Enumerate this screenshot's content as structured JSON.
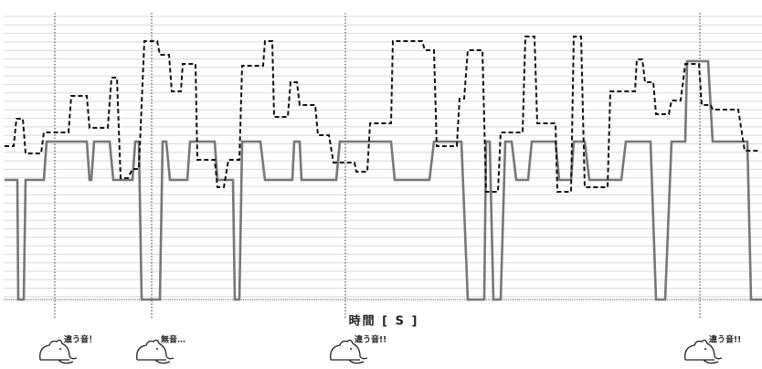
{
  "chart_data": {
    "type": "line",
    "xlabel": "時間 [ S ]",
    "xlim": [
      0,
      830
    ],
    "ylim": [
      0,
      310
    ],
    "grid": true,
    "series": [
      {
        "color": "#777777",
        "dash": "solid",
        "x": [
          1,
          15,
          16,
          22,
          24,
          44,
          47,
          91,
          94,
          96,
          99,
          116,
          120,
          141,
          144,
          148,
          151,
          171,
          174,
          178,
          182,
          201,
          204,
          231,
          234,
          251,
          253,
          258,
          261,
          281,
          286,
          316,
          318,
          324,
          326,
          364,
          368,
          424,
          428,
          466,
          471,
          501,
          508,
          526,
          528,
          532,
          536,
          544,
          549,
          556,
          561,
          574,
          578,
          604,
          608,
          621,
          624,
          636,
          641,
          676,
          681,
          708,
          714,
          724,
          731,
          746,
          748,
          771,
          776,
          814,
          818,
          830
        ],
        "values": [
          131,
          131,
          0,
          0,
          131,
          131,
          173,
          173,
          131,
          131,
          173,
          173,
          131,
          131,
          173,
          173,
          0,
          0,
          173,
          173,
          131,
          131,
          173,
          173,
          131,
          131,
          0,
          0,
          173,
          173,
          131,
          131,
          173,
          173,
          131,
          131,
          173,
          173,
          131,
          131,
          173,
          173,
          0,
          0,
          173,
          173,
          0,
          0,
          173,
          173,
          131,
          131,
          173,
          173,
          131,
          131,
          173,
          173,
          131,
          131,
          173,
          173,
          0,
          0,
          173,
          173,
          261,
          261,
          173,
          173,
          0,
          0
        ]
      },
      {
        "color": "#111111",
        "dash": "dashed",
        "x": [
          1,
          11,
          14,
          21,
          24,
          41,
          44,
          71,
          74,
          91,
          94,
          114,
          118,
          124,
          128,
          136,
          141,
          148,
          154,
          168,
          171,
          181,
          184,
          194,
          196,
          210,
          212,
          231,
          234,
          241,
          246,
          258,
          261,
          284,
          286,
          294,
          296,
          311,
          314,
          321,
          324,
          341,
          344,
          356,
          361,
          384,
          386,
          398,
          401,
          424,
          426,
          458,
          461,
          471,
          474,
          496,
          499,
          504,
          508,
          524,
          528,
          541,
          544,
          568,
          571,
          581,
          584,
          604,
          606,
          621,
          624,
          632,
          636,
          661,
          664,
          691,
          693,
          699,
          702,
          711,
          714,
          728,
          731,
          741,
          746,
          761,
          764,
          774,
          776,
          804,
          811,
          826
        ],
        "values": [
          168,
          168,
          198,
          198,
          160,
          160,
          183,
          183,
          223,
          223,
          188,
          188,
          243,
          243,
          133,
          133,
          143,
          143,
          283,
          283,
          268,
          268,
          228,
          228,
          258,
          258,
          153,
          153,
          123,
          123,
          153,
          153,
          256,
          256,
          283,
          283,
          200,
          200,
          238,
          238,
          213,
          213,
          180,
          180,
          150,
          150,
          140,
          140,
          193,
          193,
          283,
          283,
          273,
          273,
          168,
          168,
          220,
          220,
          273,
          273,
          118,
          118,
          183,
          183,
          288,
          288,
          193,
          193,
          118,
          118,
          288,
          288,
          123,
          123,
          228,
          228,
          263,
          263,
          238,
          238,
          203,
          203,
          218,
          218,
          258,
          258,
          213,
          213,
          208,
          208,
          163,
          163
        ]
      }
    ],
    "markers": [
      {
        "x": 56,
        "label": "違う音！"
      },
      {
        "x": 162,
        "label": "無音…"
      },
      {
        "x": 374,
        "label": "違う音!!"
      },
      {
        "x": 762,
        "label": "違う音!!"
      }
    ]
  }
}
